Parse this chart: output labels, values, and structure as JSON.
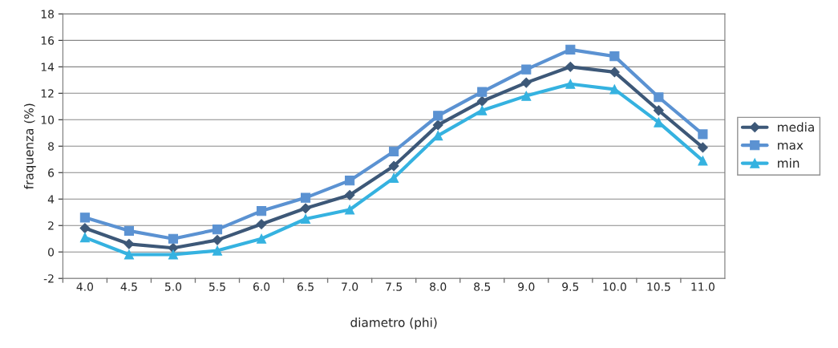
{
  "chart_data": {
    "type": "line",
    "xlabel": "diametro (phi)",
    "ylabel": "fraquenza (%)",
    "categories": [
      "4.0",
      "4.5",
      "5.0",
      "5.5",
      "6.0",
      "6.5",
      "7.0",
      "7.5",
      "8.0",
      "8.5",
      "9.0",
      "9.5",
      "10.0",
      "10.5",
      "11.0"
    ],
    "series": [
      {
        "name": "media",
        "color": "#3d5878",
        "marker": "diamond",
        "values": [
          1.8,
          0.6,
          0.3,
          0.9,
          2.1,
          3.3,
          4.3,
          6.5,
          9.6,
          11.4,
          12.8,
          14.0,
          13.6,
          10.7,
          7.9
        ]
      },
      {
        "name": "max",
        "color": "#5b92d2",
        "marker": "square",
        "values": [
          2.6,
          1.6,
          1.0,
          1.7,
          3.1,
          4.1,
          5.4,
          7.6,
          10.3,
          12.1,
          13.8,
          15.3,
          14.8,
          11.7,
          8.9
        ]
      },
      {
        "name": "min",
        "color": "#35b2e0",
        "marker": "triangle",
        "values": [
          1.1,
          -0.2,
          -0.2,
          0.1,
          1.0,
          2.5,
          3.2,
          5.6,
          8.8,
          10.7,
          11.8,
          12.7,
          12.3,
          9.8,
          6.9
        ]
      }
    ],
    "ylim": [
      -2,
      18
    ],
    "yticks": [
      -2,
      0,
      2,
      4,
      6,
      8,
      10,
      12,
      14,
      16,
      18
    ],
    "grid": "y",
    "legend": "right",
    "line_style": "solid"
  }
}
